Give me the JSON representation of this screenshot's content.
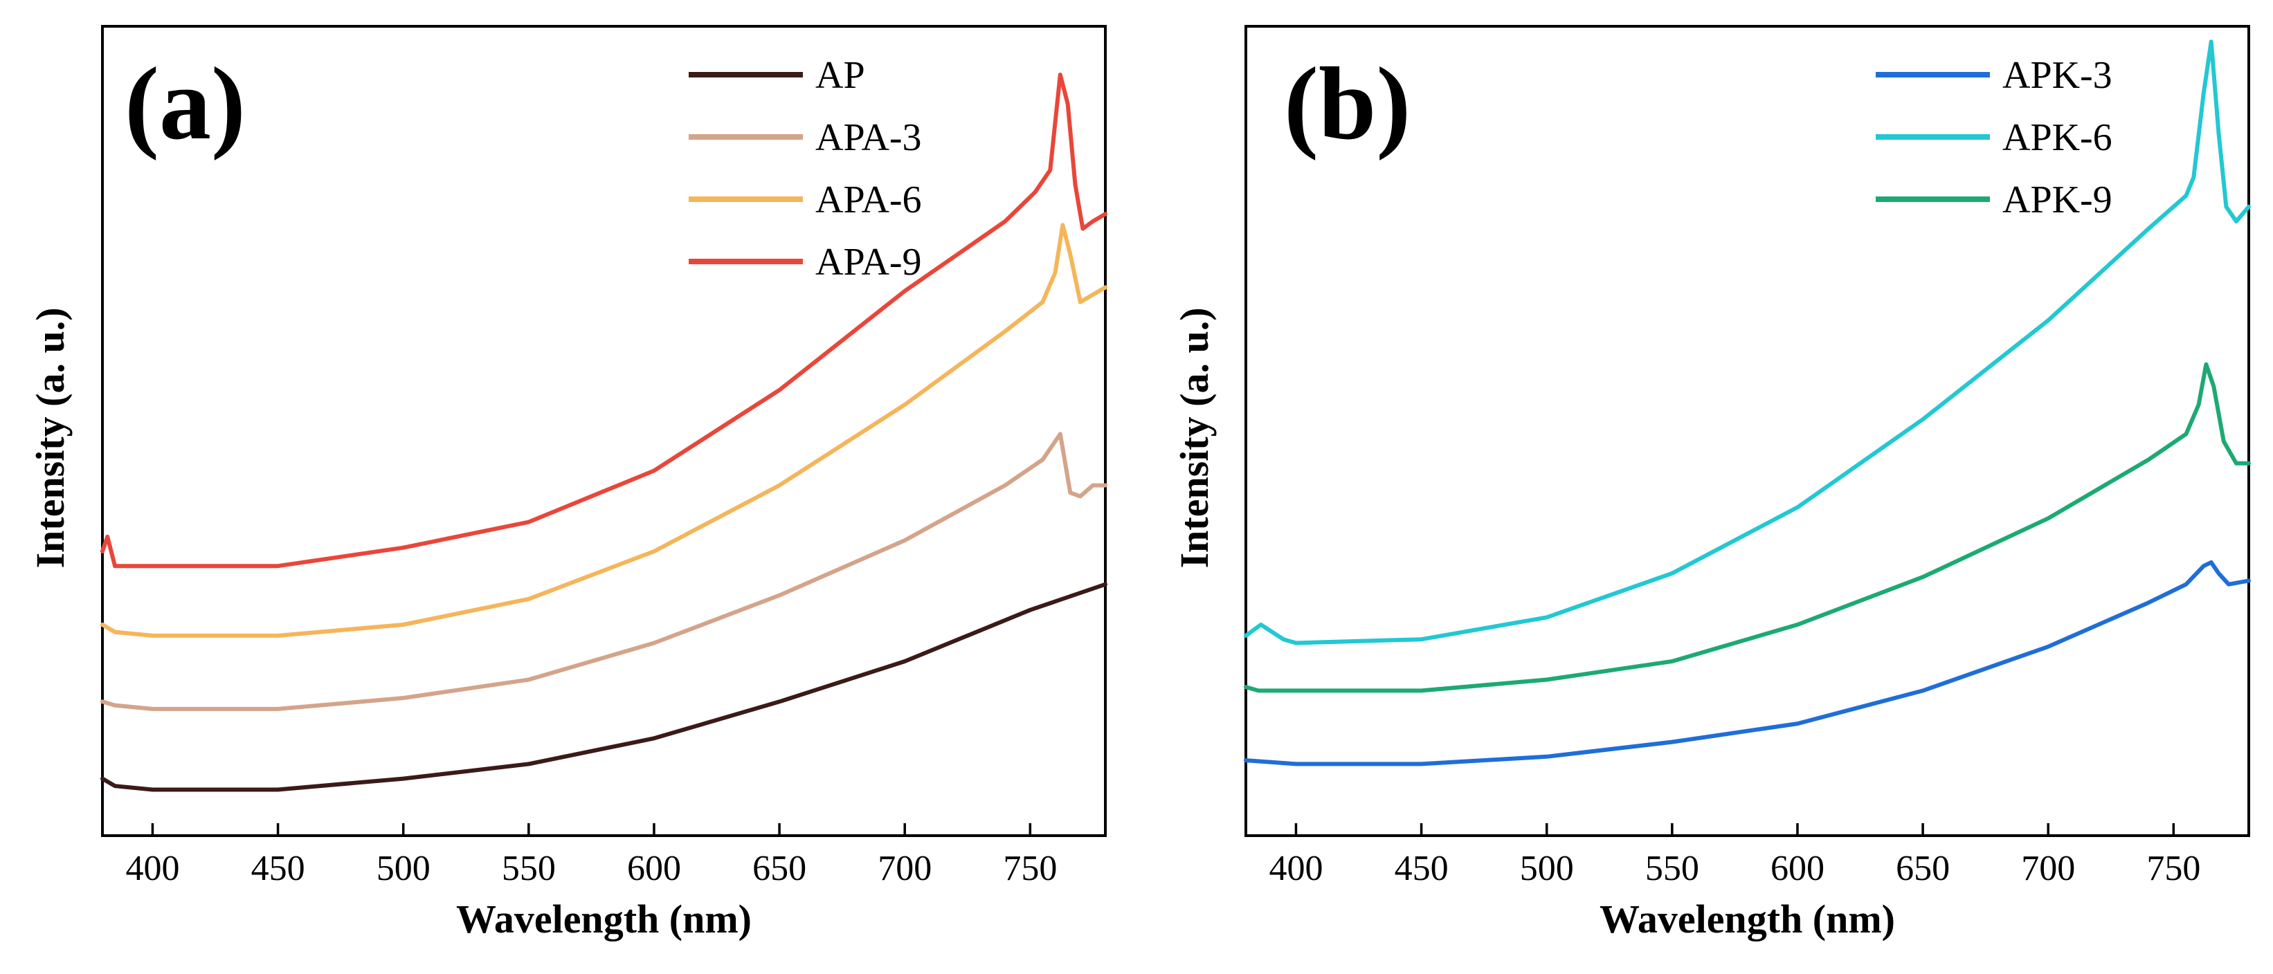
{
  "chart_data": [
    {
      "type": "line",
      "panel_label": "(a)",
      "xlabel": "Wavelength (nm)",
      "ylabel": "Intensity (a. u.)",
      "xlim": [
        380,
        780
      ],
      "ylim": [
        0,
        1
      ],
      "xticks": [
        400,
        450,
        500,
        550,
        600,
        650,
        700,
        750
      ],
      "xtick_labels": [
        "400",
        "450",
        "500",
        "550",
        "600",
        "650",
        "700",
        "750"
      ],
      "yticks_shown": false,
      "grid": false,
      "legend_position": "top-right",
      "series": [
        {
          "name": "AP",
          "color": "#3b1a17",
          "x": [
            380,
            385,
            400,
            450,
            500,
            550,
            600,
            650,
            700,
            750,
            780
          ],
          "y": [
            0.04,
            0.03,
            0.025,
            0.025,
            0.04,
            0.06,
            0.095,
            0.145,
            0.2,
            0.27,
            0.305
          ]
        },
        {
          "name": "APA-3",
          "color": "#d4a48a",
          "x": [
            380,
            385,
            400,
            450,
            500,
            550,
            600,
            650,
            700,
            740,
            755,
            762,
            766,
            770,
            775,
            780
          ],
          "y": [
            0.145,
            0.14,
            0.135,
            0.135,
            0.15,
            0.175,
            0.225,
            0.29,
            0.365,
            0.44,
            0.475,
            0.51,
            0.43,
            0.425,
            0.44,
            0.44
          ]
        },
        {
          "name": "APA-6",
          "color": "#f5b55a",
          "x": [
            380,
            385,
            400,
            450,
            500,
            550,
            600,
            650,
            700,
            740,
            755,
            760,
            763,
            766,
            770,
            775,
            780
          ],
          "y": [
            0.25,
            0.24,
            0.235,
            0.235,
            0.25,
            0.285,
            0.35,
            0.44,
            0.55,
            0.65,
            0.69,
            0.73,
            0.795,
            0.755,
            0.69,
            0.7,
            0.71
          ]
        },
        {
          "name": "APA-9",
          "color": "#e9463a",
          "x": [
            380,
            382,
            385,
            400,
            450,
            500,
            550,
            600,
            650,
            700,
            740,
            752,
            758,
            762,
            765,
            768,
            771,
            775,
            780
          ],
          "y": [
            0.35,
            0.37,
            0.33,
            0.33,
            0.33,
            0.355,
            0.39,
            0.46,
            0.57,
            0.705,
            0.8,
            0.84,
            0.87,
            1.0,
            0.96,
            0.85,
            0.79,
            0.8,
            0.81
          ]
        }
      ]
    },
    {
      "type": "line",
      "panel_label": "(b)",
      "xlabel": "Wavelength (nm)",
      "ylabel": "Intensity (a. u.)",
      "xlim": [
        380,
        780
      ],
      "ylim": [
        0,
        1
      ],
      "xticks": [
        400,
        450,
        500,
        550,
        600,
        650,
        700,
        750
      ],
      "xtick_labels": [
        "400",
        "450",
        "500",
        "550",
        "600",
        "650",
        "700",
        "750"
      ],
      "yticks_shown": false,
      "grid": false,
      "legend_position": "top-right",
      "series": [
        {
          "name": "APK-3",
          "color": "#1f6ed8",
          "x": [
            380,
            400,
            450,
            500,
            550,
            600,
            650,
            700,
            740,
            755,
            762,
            765,
            768,
            772,
            780
          ],
          "y": [
            0.065,
            0.06,
            0.06,
            0.07,
            0.09,
            0.115,
            0.16,
            0.22,
            0.28,
            0.305,
            0.33,
            0.335,
            0.32,
            0.305,
            0.31
          ]
        },
        {
          "name": "APK-6",
          "color": "#22c8d2",
          "x": [
            380,
            386,
            395,
            400,
            450,
            500,
            550,
            600,
            650,
            700,
            740,
            755,
            758,
            762,
            765,
            768,
            771,
            775,
            780
          ],
          "y": [
            0.235,
            0.25,
            0.23,
            0.225,
            0.23,
            0.26,
            0.32,
            0.41,
            0.53,
            0.665,
            0.79,
            0.835,
            0.86,
            0.975,
            1.045,
            0.92,
            0.82,
            0.8,
            0.82
          ]
        },
        {
          "name": "APK-9",
          "color": "#1caa72",
          "x": [
            380,
            385,
            400,
            450,
            500,
            550,
            600,
            650,
            700,
            740,
            755,
            760,
            763,
            766,
            770,
            775,
            780
          ],
          "y": [
            0.165,
            0.16,
            0.16,
            0.16,
            0.175,
            0.2,
            0.25,
            0.315,
            0.395,
            0.475,
            0.51,
            0.55,
            0.605,
            0.575,
            0.5,
            0.47,
            0.47
          ]
        }
      ]
    }
  ]
}
